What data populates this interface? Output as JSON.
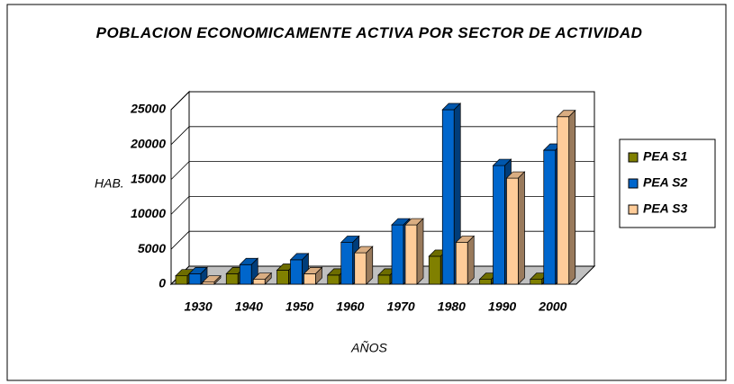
{
  "chart_data": {
    "type": "bar3d",
    "title": "POBLACION ECONOMICAMENTE ACTIVA POR SECTOR DE ACTIVIDAD",
    "y_label": "HAB.",
    "x_label": "AÑOS",
    "categories": [
      "1930",
      "1940",
      "1950",
      "1960",
      "1970",
      "1980",
      "1990",
      "2000"
    ],
    "series": [
      {
        "name": "PEA S1",
        "color": "#808000",
        "values": [
          1200,
          1500,
          2000,
          1300,
          1300,
          4000,
          700,
          700
        ]
      },
      {
        "name": "PEA S2",
        "color": "#0066cc",
        "values": [
          1500,
          2800,
          3500,
          6000,
          8500,
          25000,
          17000,
          19200
        ]
      },
      {
        "name": "PEA S3",
        "color": "#ffcc99",
        "values": [
          300,
          700,
          1500,
          4500,
          8500,
          6000,
          15200,
          24000
        ]
      }
    ],
    "ylim": [
      0,
      25000
    ],
    "yticks": [
      0,
      5000,
      10000,
      15000,
      20000,
      25000
    ],
    "grid": true,
    "legend": "right"
  }
}
